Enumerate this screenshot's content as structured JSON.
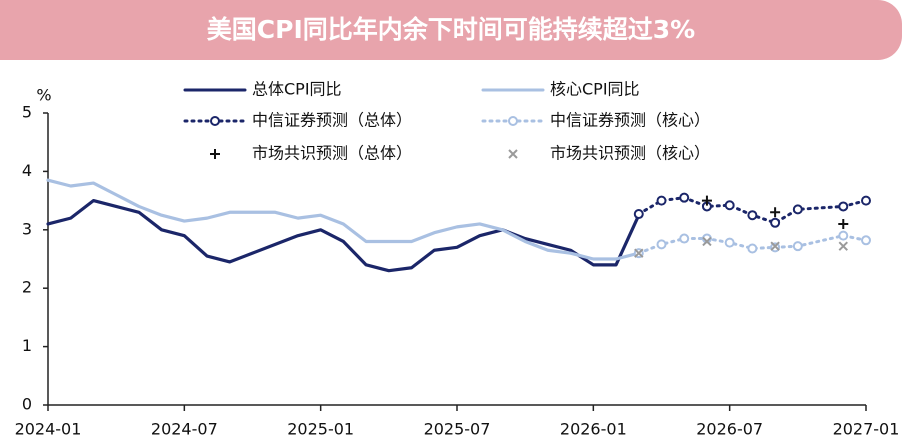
{
  "chart_data": {
    "type": "line",
    "title": "美国CPI同比年内余下时间可能持续超过3%",
    "ylabel": "%",
    "xlim": [
      "2024-01",
      "2027-01"
    ],
    "xticks": [
      "2024-01",
      "2024-07",
      "2025-01",
      "2025-07",
      "2026-01",
      "2026-07",
      "2027-01"
    ],
    "ylim": [
      0,
      5
    ],
    "yticks": [
      0,
      1,
      2,
      3,
      4,
      5
    ],
    "series": [
      {
        "name": "总体CPI同比",
        "color": "#1b2669",
        "style": "solid",
        "marker": "none",
        "x": [
          "2024-01",
          "2024-02",
          "2024-03",
          "2024-04",
          "2024-05",
          "2024-06",
          "2024-07",
          "2024-08",
          "2024-09",
          "2024-10",
          "2024-11",
          "2024-12",
          "2025-01",
          "2025-02",
          "2025-03",
          "2025-04",
          "2025-05",
          "2025-06",
          "2025-07",
          "2025-08",
          "2025-09",
          "2025-10",
          "2025-11",
          "2025-12",
          "2026-01",
          "2026-02",
          "2026-03"
        ],
        "values": [
          3.1,
          3.2,
          3.5,
          3.4,
          3.3,
          3.0,
          2.9,
          2.55,
          2.45,
          2.6,
          2.75,
          2.9,
          3.0,
          2.8,
          2.4,
          2.3,
          2.35,
          2.65,
          2.7,
          2.9,
          3.0,
          2.85,
          2.75,
          2.65,
          2.4,
          2.4,
          3.25
        ]
      },
      {
        "name": "核心CPI同比",
        "color": "#a9c0e2",
        "style": "solid",
        "marker": "none",
        "x": [
          "2024-01",
          "2024-02",
          "2024-03",
          "2024-04",
          "2024-05",
          "2024-06",
          "2024-07",
          "2024-08",
          "2024-09",
          "2024-10",
          "2024-11",
          "2024-12",
          "2025-01",
          "2025-02",
          "2025-03",
          "2025-04",
          "2025-05",
          "2025-06",
          "2025-07",
          "2025-08",
          "2025-09",
          "2025-10",
          "2025-11",
          "2025-12",
          "2026-01",
          "2026-02",
          "2026-03"
        ],
        "values": [
          3.85,
          3.75,
          3.8,
          3.6,
          3.4,
          3.25,
          3.15,
          3.2,
          3.3,
          3.3,
          3.3,
          3.2,
          3.25,
          3.1,
          2.8,
          2.8,
          2.8,
          2.95,
          3.05,
          3.1,
          3.0,
          2.8,
          2.65,
          2.6,
          2.5,
          2.5,
          2.6
        ]
      },
      {
        "name": "中信证券预测（总体）",
        "color": "#1b2669",
        "style": "dotted",
        "marker": "circle",
        "x": [
          "2026-03",
          "2026-04",
          "2026-05",
          "2026-06",
          "2026-07",
          "2026-08",
          "2026-09",
          "2026-10",
          "2026-12",
          "2027-01"
        ],
        "values": [
          3.27,
          3.5,
          3.55,
          3.4,
          3.42,
          3.25,
          3.12,
          3.35,
          3.4,
          3.5
        ]
      },
      {
        "name": "中信证券预测（核心）",
        "color": "#a9c0e2",
        "style": "dotted",
        "marker": "circle",
        "x": [
          "2026-03",
          "2026-04",
          "2026-05",
          "2026-06",
          "2026-07",
          "2026-08",
          "2026-09",
          "2026-10",
          "2026-12",
          "2027-01"
        ],
        "values": [
          2.6,
          2.75,
          2.85,
          2.85,
          2.78,
          2.68,
          2.7,
          2.72,
          2.9,
          2.82
        ]
      },
      {
        "name": "市场共识预测（总体）",
        "color": "#111111",
        "style": "none",
        "marker": "plus",
        "x": [
          "2026-06",
          "2026-09",
          "2026-12"
        ],
        "values": [
          3.5,
          3.3,
          3.1
        ]
      },
      {
        "name": "市场共识预测（核心）",
        "color": "#9a9a9a",
        "style": "none",
        "marker": "x",
        "x": [
          "2026-03",
          "2026-06",
          "2026-09",
          "2026-12"
        ],
        "values": [
          2.6,
          2.8,
          2.72,
          2.72
        ]
      }
    ]
  }
}
